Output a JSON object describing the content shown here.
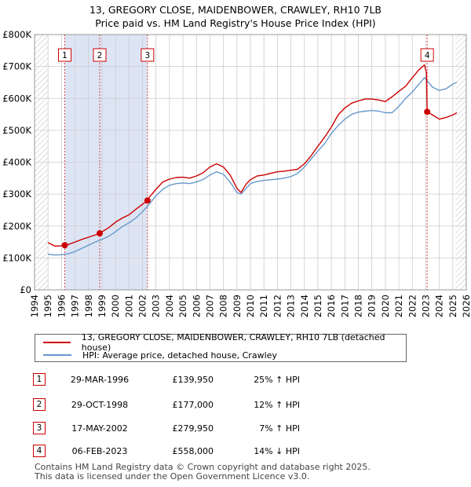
{
  "title_line1": "13, GREGORY CLOSE, MAIDENBOWER, CRAWLEY, RH10 7LB",
  "title_line2": "Price paid vs. HM Land Registry's House Price Index (HPI)",
  "colors": {
    "property_line": "#cc0000",
    "hpi_line": "#6699cc",
    "highlight_band": "#dde5f5",
    "grid": "#cccccc",
    "marker_border": "#cc0000"
  },
  "legend": {
    "property": "13, GREGORY CLOSE, MAIDENBOWER, CRAWLEY, RH10 7LB (detached house)",
    "hpi": "HPI: Average price, detached house, Crawley"
  },
  "sales": [
    {
      "num": "1",
      "date": "29-MAR-1996",
      "price": "£139,950",
      "hpi_change": "25% ↑ HPI"
    },
    {
      "num": "2",
      "date": "29-OCT-1998",
      "price": "£177,000",
      "hpi_change": "12% ↑ HPI"
    },
    {
      "num": "3",
      "date": "17-MAY-2002",
      "price": "£279,950",
      "hpi_change": "7% ↑ HPI"
    },
    {
      "num": "4",
      "date": "06-FEB-2023",
      "price": "£558,000",
      "hpi_change": "14% ↓ HPI"
    }
  ],
  "footer": {
    "line1": "Contains HM Land Registry data © Crown copyright and database right 2025.",
    "line2": "This data is licensed under the Open Government Licence v3.0."
  },
  "chart_data": {
    "type": "line",
    "title": "13, GREGORY CLOSE, MAIDENBOWER, CRAWLEY, RH10 7LB — Price paid vs. HM Land Registry's House Price Index (HPI)",
    "xlim": [
      1994,
      2026
    ],
    "ylim": [
      0,
      800000
    ],
    "x_ticks": [
      1994,
      1995,
      1996,
      1997,
      1998,
      1999,
      2000,
      2001,
      2002,
      2003,
      2004,
      2005,
      2006,
      2007,
      2008,
      2009,
      2010,
      2011,
      2012,
      2013,
      2014,
      2015,
      2016,
      2017,
      2018,
      2019,
      2020,
      2021,
      2022,
      2023,
      2024,
      2025,
      2026
    ],
    "y_ticks": [
      {
        "value": 0,
        "label": "£0"
      },
      {
        "value": 100000,
        "label": "£100K"
      },
      {
        "value": 200000,
        "label": "£200K"
      },
      {
        "value": 300000,
        "label": "£300K"
      },
      {
        "value": 400000,
        "label": "£400K"
      },
      {
        "value": 500000,
        "label": "£500K"
      },
      {
        "value": 600000,
        "label": "£600K"
      },
      {
        "value": 700000,
        "label": "£700K"
      },
      {
        "value": 800000,
        "label": "£800K"
      }
    ],
    "grid": true,
    "data_start": 1995.0,
    "forecast_start": 2025.2,
    "highlight_band": [
      1996.24,
      2002.37
    ],
    "sale_markers": [
      {
        "label": "1",
        "x": 1996.24,
        "y": 139950
      },
      {
        "label": "2",
        "x": 1998.83,
        "y": 177000
      },
      {
        "label": "3",
        "x": 2002.37,
        "y": 279950
      },
      {
        "label": "4",
        "x": 2023.1,
        "y": 558000
      }
    ],
    "series": [
      {
        "name": "13, GREGORY CLOSE, MAIDENBOWER, CRAWLEY, RH10 7LB (detached house)",
        "x": [
          1995.0,
          1995.5,
          1996.0,
          1996.24,
          1996.5,
          1997.0,
          1997.5,
          1998.0,
          1998.5,
          1998.83,
          1999.0,
          1999.5,
          2000.0,
          2000.5,
          2001.0,
          2001.5,
          2002.0,
          2002.37,
          2002.5,
          2003.0,
          2003.5,
          2004.0,
          2004.5,
          2005.0,
          2005.5,
          2006.0,
          2006.5,
          2007.0,
          2007.5,
          2008.0,
          2008.5,
          2009.0,
          2009.3,
          2009.7,
          2010.0,
          2010.5,
          2011.0,
          2011.5,
          2012.0,
          2012.5,
          2013.0,
          2013.5,
          2014.0,
          2014.5,
          2015.0,
          2015.5,
          2016.0,
          2016.5,
          2017.0,
          2017.5,
          2018.0,
          2018.5,
          2019.0,
          2019.5,
          2020.0,
          2020.5,
          2021.0,
          2021.5,
          2022.0,
          2022.5,
          2022.9,
          2023.05,
          2023.1,
          2023.5,
          2024.0,
          2024.5,
          2025.0,
          2025.3
        ],
        "y": [
          148000,
          137000,
          138000,
          139950,
          142000,
          150000,
          158000,
          165000,
          172000,
          177000,
          182000,
          195000,
          212000,
          225000,
          235000,
          252000,
          268000,
          279950,
          290000,
          315000,
          338000,
          347000,
          352000,
          353000,
          350000,
          357000,
          367000,
          385000,
          395000,
          385000,
          360000,
          318000,
          305000,
          332000,
          345000,
          357000,
          360000,
          365000,
          370000,
          372000,
          375000,
          378000,
          395000,
          420000,
          450000,
          478000,
          510000,
          548000,
          570000,
          585000,
          592000,
          598000,
          598000,
          595000,
          590000,
          605000,
          622000,
          638000,
          665000,
          690000,
          705000,
          680000,
          558000,
          548000,
          535000,
          540000,
          548000,
          555000
        ]
      },
      {
        "name": "HPI: Average price, detached house, Crawley",
        "x": [
          1995.0,
          1995.5,
          1996.0,
          1996.5,
          1997.0,
          1997.5,
          1998.0,
          1998.5,
          1999.0,
          1999.5,
          2000.0,
          2000.5,
          2001.0,
          2001.5,
          2002.0,
          2002.5,
          2003.0,
          2003.5,
          2004.0,
          2004.5,
          2005.0,
          2005.5,
          2006.0,
          2006.5,
          2007.0,
          2007.5,
          2008.0,
          2008.5,
          2009.0,
          2009.3,
          2009.7,
          2010.0,
          2010.5,
          2011.0,
          2011.5,
          2012.0,
          2012.5,
          2013.0,
          2013.5,
          2014.0,
          2014.5,
          2015.0,
          2015.5,
          2016.0,
          2016.5,
          2017.0,
          2017.5,
          2018.0,
          2018.5,
          2019.0,
          2019.5,
          2020.0,
          2020.5,
          2021.0,
          2021.5,
          2022.0,
          2022.5,
          2022.9,
          2023.2,
          2023.5,
          2024.0,
          2024.5,
          2025.0,
          2025.3
        ],
        "y": [
          112000,
          109000,
          110000,
          113000,
          120000,
          130000,
          140000,
          150000,
          158000,
          168000,
          182000,
          198000,
          210000,
          225000,
          245000,
          268000,
          295000,
          315000,
          328000,
          333000,
          335000,
          333000,
          338000,
          346000,
          360000,
          370000,
          362000,
          338000,
          305000,
          300000,
          318000,
          333000,
          340000,
          343000,
          345000,
          347000,
          350000,
          355000,
          365000,
          385000,
          410000,
          435000,
          458000,
          490000,
          515000,
          535000,
          550000,
          557000,
          560000,
          562000,
          560000,
          555000,
          555000,
          575000,
          600000,
          620000,
          645000,
          665000,
          650000,
          635000,
          625000,
          630000,
          645000,
          650000
        ]
      }
    ]
  }
}
